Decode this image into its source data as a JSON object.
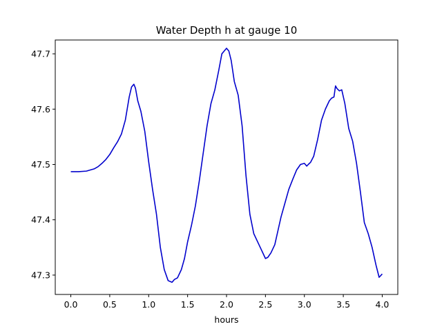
{
  "chart_data": {
    "type": "line",
    "title": "Water Depth h at gauge 10",
    "xlabel": "hours",
    "ylabel": "",
    "xlim": [
      -0.2,
      4.2
    ],
    "ylim": [
      47.265,
      47.725
    ],
    "xticks": [
      0.0,
      0.5,
      1.0,
      1.5,
      2.0,
      2.5,
      3.0,
      3.5,
      4.0
    ],
    "xtick_labels": [
      "0.0",
      "0.5",
      "1.0",
      "1.5",
      "2.0",
      "2.5",
      "3.0",
      "3.5",
      "4.0"
    ],
    "yticks": [
      47.3,
      47.4,
      47.5,
      47.6,
      47.7
    ],
    "ytick_labels": [
      "47.3",
      "47.4",
      "47.5",
      "47.6",
      "47.7"
    ],
    "grid": false,
    "series": [
      {
        "color": "#0000cc",
        "x": [
          0.0,
          0.1,
          0.2,
          0.3,
          0.35,
          0.4,
          0.45,
          0.5,
          0.55,
          0.6,
          0.65,
          0.7,
          0.75,
          0.78,
          0.81,
          0.83,
          0.86,
          0.9,
          0.95,
          1.0,
          1.05,
          1.1,
          1.15,
          1.2,
          1.25,
          1.3,
          1.33,
          1.37,
          1.42,
          1.46,
          1.5,
          1.55,
          1.6,
          1.65,
          1.7,
          1.75,
          1.8,
          1.85,
          1.9,
          1.94,
          1.97,
          2.0,
          2.03,
          2.06,
          2.1,
          2.15,
          2.2,
          2.25,
          2.3,
          2.35,
          2.4,
          2.45,
          2.5,
          2.53,
          2.57,
          2.62,
          2.66,
          2.7,
          2.75,
          2.8,
          2.85,
          2.9,
          2.95,
          3.0,
          3.03,
          3.05,
          3.08,
          3.12,
          3.17,
          3.22,
          3.27,
          3.32,
          3.35,
          3.38,
          3.4,
          3.42,
          3.45,
          3.48,
          3.52,
          3.57,
          3.62,
          3.67,
          3.72,
          3.77,
          3.82,
          3.87,
          3.92,
          3.96,
          4.0
        ],
        "y": [
          47.487,
          47.487,
          47.488,
          47.492,
          47.496,
          47.502,
          47.509,
          47.518,
          47.53,
          47.541,
          47.555,
          47.58,
          47.622,
          47.64,
          47.645,
          47.638,
          47.615,
          47.596,
          47.56,
          47.505,
          47.455,
          47.41,
          47.35,
          47.31,
          47.29,
          47.287,
          47.292,
          47.295,
          47.31,
          47.33,
          47.36,
          47.39,
          47.425,
          47.47,
          47.52,
          47.57,
          47.61,
          47.635,
          47.67,
          47.7,
          47.705,
          47.71,
          47.705,
          47.688,
          47.65,
          47.625,
          47.57,
          47.48,
          47.41,
          47.375,
          47.36,
          47.345,
          47.33,
          47.332,
          47.34,
          47.355,
          47.38,
          47.405,
          47.43,
          47.455,
          47.473,
          47.49,
          47.5,
          47.502,
          47.497,
          47.5,
          47.504,
          47.515,
          47.545,
          47.58,
          47.6,
          47.615,
          47.62,
          47.622,
          47.642,
          47.637,
          47.633,
          47.635,
          47.61,
          47.565,
          47.542,
          47.502,
          47.45,
          47.395,
          47.375,
          47.35,
          47.318,
          47.296,
          47.302
        ]
      }
    ]
  }
}
